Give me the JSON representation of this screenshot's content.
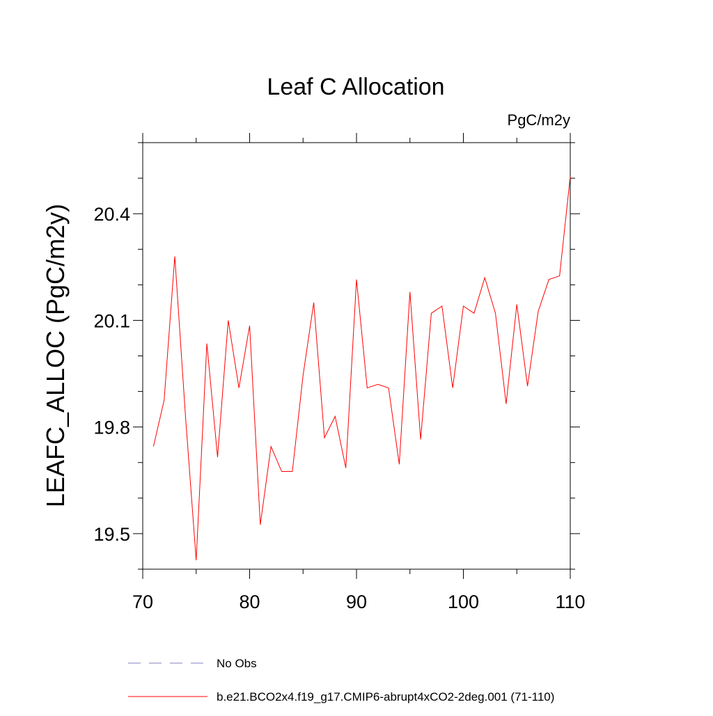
{
  "chart_data": {
    "type": "line",
    "title": "Leaf C Allocation",
    "units_label": "PgC/m2y",
    "ylabel": "LEAFC_ALLOC  (PgC/m2y)",
    "xlabel": "",
    "xlim": [
      70,
      110
    ],
    "ylim": [
      19.4,
      20.6
    ],
    "x_ticks": [
      70,
      80,
      90,
      100,
      110
    ],
    "x_tick_labels": [
      "70",
      "80",
      "90",
      "100",
      "110"
    ],
    "y_ticks": [
      19.5,
      19.8,
      20.1,
      20.4
    ],
    "y_tick_labels": [
      "19.5",
      "19.8",
      "20.1",
      "20.4"
    ],
    "grid": false,
    "legend_position": "bottom",
    "series": [
      {
        "name": "b.e21.BCO2x4.f19_g17.CMIP6-abrupt4xCO2-2deg.001 (71-110)",
        "color": "#ff0000",
        "line_style": "solid",
        "x": [
          71,
          72,
          73,
          74,
          75,
          76,
          77,
          78,
          79,
          80,
          81,
          82,
          83,
          84,
          85,
          86,
          87,
          88,
          89,
          90,
          91,
          92,
          93,
          94,
          95,
          96,
          97,
          98,
          99,
          100,
          101,
          102,
          103,
          104,
          105,
          106,
          107,
          108,
          109,
          110
        ],
        "values": [
          19.745,
          19.875,
          20.28,
          19.83,
          19.425,
          20.035,
          19.715,
          20.1,
          19.91,
          20.085,
          19.525,
          19.745,
          19.675,
          19.675,
          19.945,
          20.15,
          19.77,
          19.83,
          19.685,
          20.215,
          19.91,
          19.92,
          19.91,
          19.695,
          20.18,
          19.765,
          20.12,
          20.14,
          19.91,
          20.14,
          20.12,
          20.22,
          20.12,
          19.865,
          20.145,
          19.915,
          20.125,
          20.215,
          20.225,
          20.505
        ]
      }
    ],
    "legend": [
      {
        "label": "No Obs",
        "color": "#8080c0",
        "line_style": "dashed"
      },
      {
        "label": "b.e21.BCO2x4.f19_g17.CMIP6-abrupt4xCO2-2deg.001 (71-110)",
        "color": "#ff0000",
        "line_style": "solid"
      }
    ]
  }
}
